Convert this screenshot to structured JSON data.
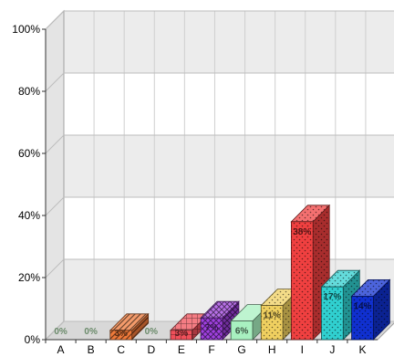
{
  "chart_data": {
    "type": "bar",
    "title": "",
    "xlabel": "",
    "ylabel": "",
    "ylim": [
      0,
      100
    ],
    "y_tick_values": [
      0,
      20,
      40,
      60,
      80,
      100
    ],
    "y_tick_labels": [
      "0%",
      "20%",
      "40%",
      "60%",
      "80%",
      "100%"
    ],
    "categories": [
      "A",
      "B",
      "C",
      "D",
      "E",
      "F",
      "G",
      "H",
      "I",
      "J",
      "K"
    ],
    "values": [
      0,
      0,
      3,
      0,
      3,
      7,
      6,
      11,
      38,
      17,
      14
    ],
    "data_labels": [
      "0%",
      "0%",
      "3%",
      "0%",
      "3%",
      "7%",
      "6%",
      "11%",
      "38%",
      "17%",
      "14%"
    ],
    "grid": true,
    "legend": "none",
    "bar_colors": [
      "#f07a3a",
      "#7a7a7a",
      "#f07a3a",
      "#7a7a7a",
      "#f0505a",
      "#a040e0",
      "#a8f0c0",
      "#f0d060",
      "#f04040",
      "#30d0d0",
      "#1030d0"
    ],
    "bar_patterns": [
      "diagonal",
      "none",
      "diagonal",
      "none",
      "grid",
      "checker",
      "plain",
      "dots",
      "dots",
      "dots",
      "dots"
    ]
  }
}
